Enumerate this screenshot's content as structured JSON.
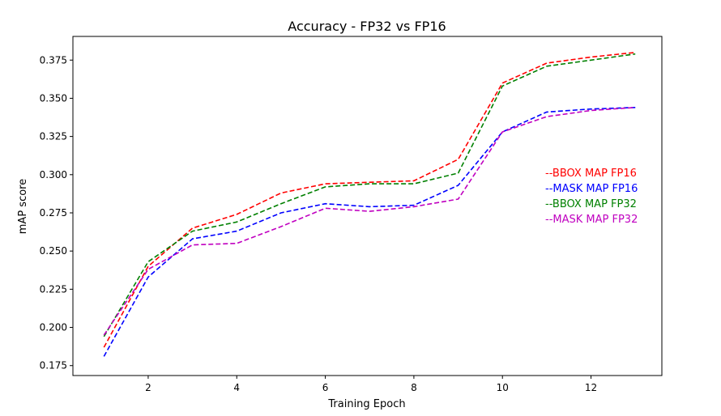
{
  "chart_data": {
    "type": "line",
    "title": "Accuracy - FP32 vs FP16",
    "xlabel": "Training Epoch",
    "ylabel": "mAP score",
    "xlim": [
      0.3,
      13.6
    ],
    "ylim": [
      0.1685,
      0.3905
    ],
    "xticks": [
      2,
      4,
      6,
      8,
      10,
      12
    ],
    "xtick_labels": [
      "2",
      "4",
      "6",
      "8",
      "10",
      "12"
    ],
    "yticks": [
      0.175,
      0.2,
      0.225,
      0.25,
      0.275,
      0.3,
      0.325,
      0.35,
      0.375
    ],
    "ytick_labels": [
      "0.175",
      "0.200",
      "0.225",
      "0.250",
      "0.275",
      "0.300",
      "0.325",
      "0.350",
      "0.375"
    ],
    "grid": false,
    "legend_position": "center-right",
    "x": [
      1,
      2,
      3,
      4,
      5,
      6,
      7,
      8,
      9,
      10,
      11,
      12,
      13
    ],
    "series": [
      {
        "name": "BBOX MAP FP16",
        "legend_label": "--BBOX MAP FP16",
        "color": "#ff0000",
        "values": [
          0.187,
          0.24,
          0.265,
          0.274,
          0.288,
          0.294,
          0.295,
          0.296,
          0.31,
          0.36,
          0.373,
          0.377,
          0.38
        ]
      },
      {
        "name": "MASK MAP FP16",
        "legend_label": "--MASK MAP FP16",
        "color": "#0000ff",
        "values": [
          0.181,
          0.233,
          0.258,
          0.263,
          0.275,
          0.281,
          0.279,
          0.28,
          0.293,
          0.328,
          0.341,
          0.343,
          0.344
        ]
      },
      {
        "name": "BBOX MAP FP32",
        "legend_label": "--BBOX MAP FP32",
        "color": "#008000",
        "values": [
          0.194,
          0.243,
          0.263,
          0.269,
          0.281,
          0.292,
          0.294,
          0.294,
          0.301,
          0.358,
          0.371,
          0.375,
          0.379
        ]
      },
      {
        "name": "MASK MAP FP32",
        "legend_label": "--MASK MAP FP32",
        "color": "#c000c0",
        "values": [
          0.195,
          0.238,
          0.254,
          0.255,
          0.266,
          0.278,
          0.276,
          0.279,
          0.284,
          0.328,
          0.338,
          0.342,
          0.344
        ]
      }
    ]
  }
}
